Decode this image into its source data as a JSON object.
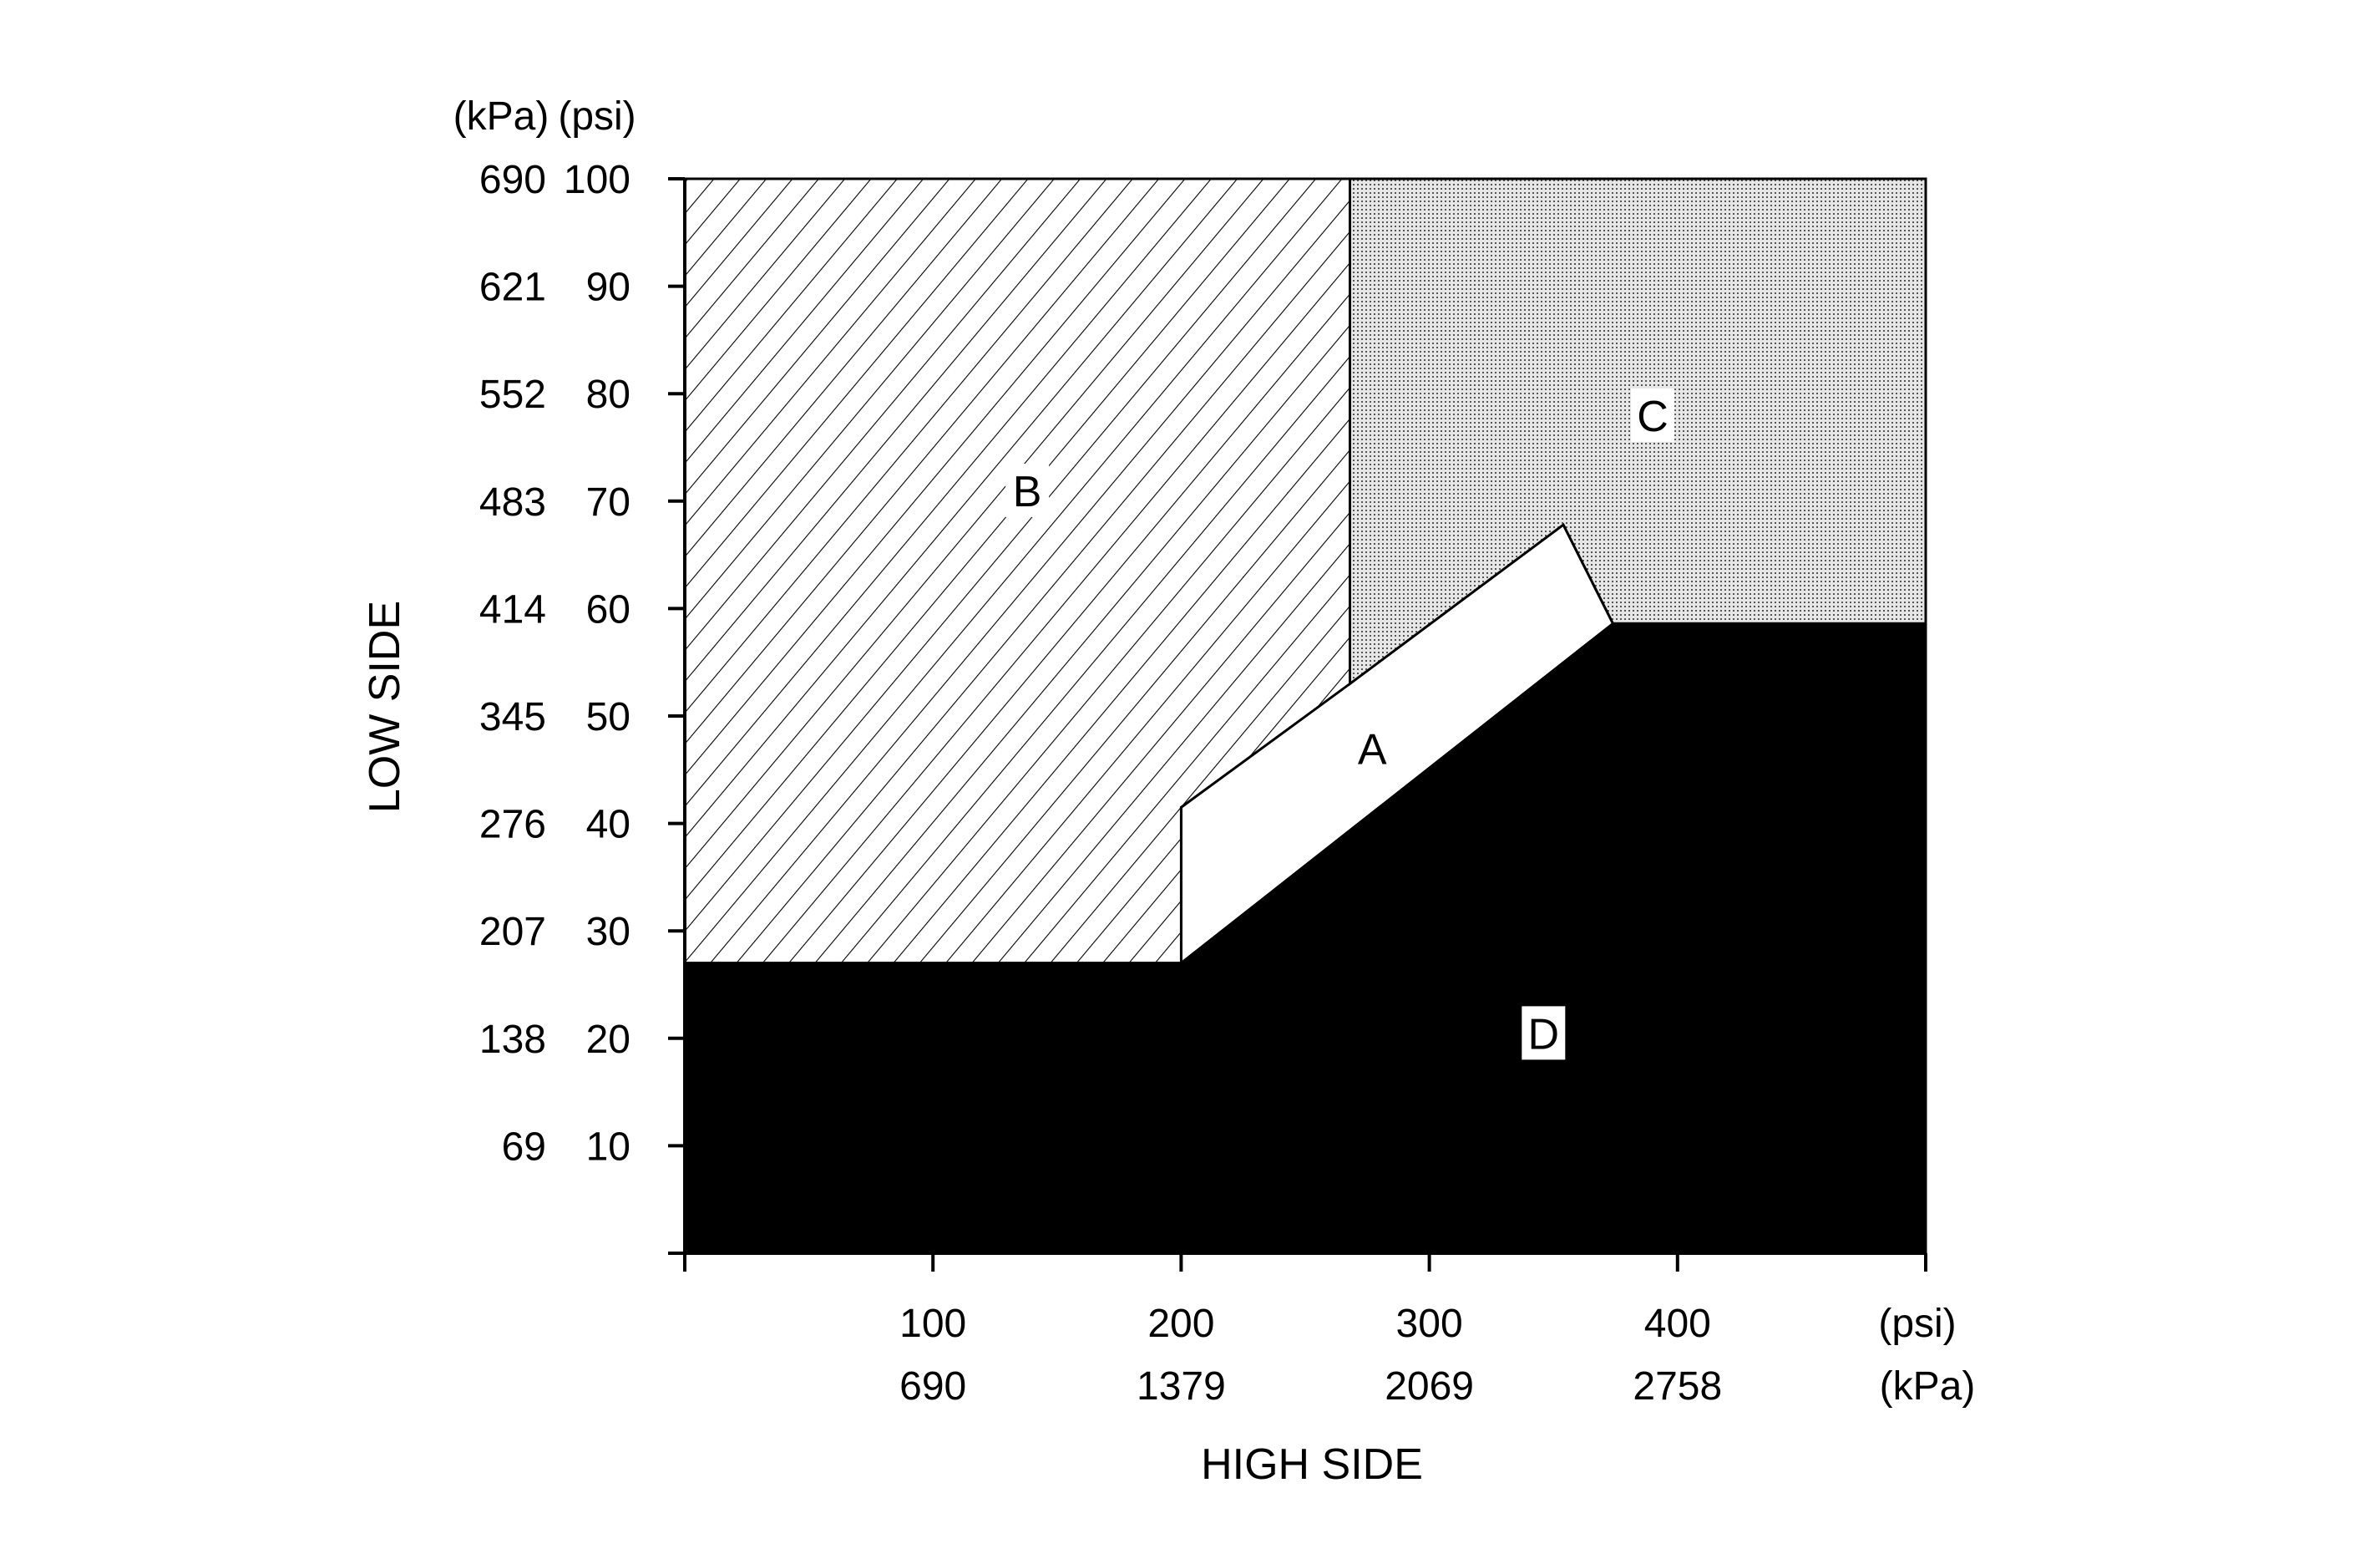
{
  "chart_data": {
    "type": "area",
    "title": "",
    "xlabel": "HIGH SIDE",
    "ylabel": "LOW SIDE",
    "xlim": [
      0,
      500
    ],
    "ylim": [
      0,
      100
    ],
    "x_unit_labels": [
      "(psi)",
      "(kPa)"
    ],
    "y_unit_labels": [
      "(kPa)",
      "(psi)"
    ],
    "x_ticks_psi": [
      "100",
      "200",
      "300",
      "400"
    ],
    "x_ticks_kpa": [
      "690",
      "1379",
      "2069",
      "2758"
    ],
    "x_tick_values": [
      0,
      100,
      200,
      300,
      400,
      500
    ],
    "y_ticks_psi": [
      "10",
      "20",
      "30",
      "40",
      "50",
      "60",
      "70",
      "80",
      "90",
      "100"
    ],
    "y_ticks_kpa": [
      "69",
      "138",
      "207",
      "276",
      "345",
      "414",
      "483",
      "552",
      "621",
      "690"
    ],
    "y_tick_values": [
      0,
      10,
      20,
      30,
      40,
      50,
      60,
      70,
      80,
      90,
      100
    ],
    "regions": [
      {
        "name": "A",
        "fill": "white",
        "polygon": [
          [
            200,
            27
          ],
          [
            200,
            41.5
          ],
          [
            354,
            67.8
          ],
          [
            374,
            58.6
          ]
        ],
        "label_at": [
          277,
          47
        ]
      },
      {
        "name": "B",
        "fill": "diagonal-hatch",
        "polygon": [
          [
            0,
            27
          ],
          [
            200,
            27
          ],
          [
            200,
            41.5
          ],
          [
            268,
            53
          ],
          [
            268,
            100
          ],
          [
            0,
            100
          ]
        ],
        "label_at": [
          138,
          71
        ]
      },
      {
        "name": "C",
        "fill": "stipple",
        "polygon": [
          [
            268,
            53
          ],
          [
            354,
            67.8
          ],
          [
            374,
            58.6
          ],
          [
            500,
            58.6
          ],
          [
            500,
            100
          ],
          [
            268,
            100
          ]
        ],
        "label_at": [
          390,
          78
        ]
      },
      {
        "name": "D",
        "fill": "black",
        "polygon": [
          [
            0,
            0
          ],
          [
            500,
            0
          ],
          [
            500,
            58.6
          ],
          [
            374,
            58.6
          ],
          [
            200,
            27
          ],
          [
            0,
            27
          ]
        ],
        "label_at": [
          346,
          20.5
        ]
      }
    ],
    "grid": false,
    "legend": "none"
  }
}
